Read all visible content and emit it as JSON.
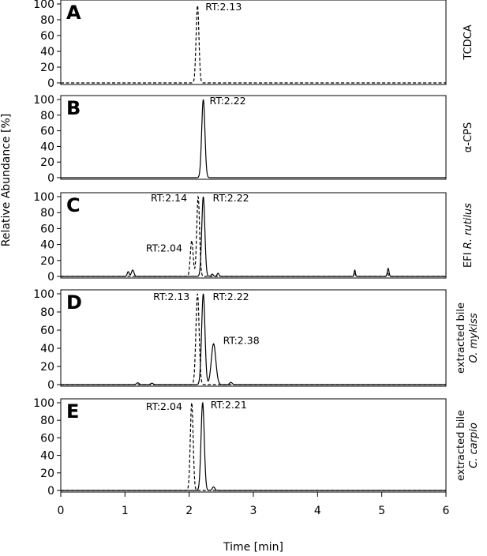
{
  "figure": {
    "ylabel": "Relative Abundance [%]",
    "xlabel": "Time [min]"
  },
  "chart_data": [
    {
      "type": "line",
      "panel": "A",
      "side_label": {
        "lines": [
          [
            {
              "text": "TCDCA",
              "italic": false
            }
          ]
        ]
      },
      "xlim": [
        0,
        6
      ],
      "ylim": [
        0,
        100
      ],
      "x_ticks": [
        0,
        1,
        2,
        3,
        4,
        5,
        6
      ],
      "y_ticks": [
        0,
        20,
        40,
        60,
        80,
        100
      ],
      "series": [
        {
          "dash": true,
          "baseline": 0,
          "peaks": [
            {
              "center": 2.13,
              "height": 98,
              "width": 0.022
            }
          ]
        }
      ],
      "annotations": [
        {
          "text": "RT:2.13",
          "x": 2.13,
          "y": 98
        }
      ]
    },
    {
      "type": "line",
      "panel": "B",
      "side_label": {
        "lines": [
          [
            {
              "text": "α-CPS",
              "italic": false
            }
          ]
        ]
      },
      "xlim": [
        0,
        6
      ],
      "ylim": [
        0,
        100
      ],
      "x_ticks": [
        0,
        1,
        2,
        3,
        4,
        5,
        6
      ],
      "y_ticks": [
        0,
        20,
        40,
        60,
        80,
        100
      ],
      "series": [
        {
          "dash": false,
          "baseline": 0,
          "peaks": [
            {
              "center": 2.22,
              "height": 100,
              "width": 0.025
            }
          ]
        }
      ],
      "annotations": [
        {
          "text": "RT:2.22",
          "x": 2.22,
          "y": 100
        }
      ]
    },
    {
      "type": "line",
      "panel": "C",
      "side_label": {
        "lines": [
          [
            {
              "text": "EFI ",
              "italic": false
            },
            {
              "text": "R. rutilus",
              "italic": true
            }
          ]
        ]
      },
      "xlim": [
        0,
        6
      ],
      "ylim": [
        0,
        100
      ],
      "x_ticks": [
        0,
        1,
        2,
        3,
        4,
        5,
        6
      ],
      "y_ticks": [
        0,
        20,
        40,
        60,
        80,
        100
      ],
      "series": [
        {
          "dash": true,
          "baseline": 0,
          "peaks": [
            {
              "center": 2.04,
              "height": 45,
              "width": 0.022
            },
            {
              "center": 2.14,
              "height": 100,
              "width": 0.022
            },
            {
              "center": 4.58,
              "height": 5,
              "width": 0.01
            },
            {
              "center": 5.09,
              "height": 4,
              "width": 0.012
            }
          ]
        },
        {
          "dash": false,
          "baseline": 0,
          "peaks": [
            {
              "center": 1.05,
              "height": 6,
              "width": 0.015
            },
            {
              "center": 1.12,
              "height": 8,
              "width": 0.02
            },
            {
              "center": 2.22,
              "height": 100,
              "width": 0.024
            },
            {
              "center": 2.36,
              "height": 3,
              "width": 0.015
            },
            {
              "center": 2.45,
              "height": 4,
              "width": 0.015
            },
            {
              "center": 4.58,
              "height": 8,
              "width": 0.01
            },
            {
              "center": 5.1,
              "height": 10,
              "width": 0.013
            }
          ]
        }
      ],
      "annotations": [
        {
          "text": "RT:2.14",
          "x": 2.14,
          "y": 100
        },
        {
          "text": "RT:2.22",
          "x": 2.22,
          "y": 100
        },
        {
          "text": "RT:2.04",
          "x": 2.04,
          "y": 45
        }
      ]
    },
    {
      "type": "line",
      "panel": "D",
      "side_label": {
        "lines": [
          [
            {
              "text": "extracted bile",
              "italic": false
            }
          ],
          [
            {
              "text": "O. mykiss",
              "italic": true
            }
          ]
        ]
      },
      "xlim": [
        0,
        6
      ],
      "ylim": [
        0,
        100
      ],
      "x_ticks": [
        0,
        1,
        2,
        3,
        4,
        5,
        6
      ],
      "y_ticks": [
        0,
        20,
        40,
        60,
        80,
        100
      ],
      "series": [
        {
          "dash": true,
          "baseline": 0,
          "peaks": [
            {
              "center": 2.13,
              "height": 100,
              "width": 0.025
            }
          ]
        },
        {
          "dash": false,
          "baseline": 0,
          "peaks": [
            {
              "center": 1.2,
              "height": 2,
              "width": 0.02
            },
            {
              "center": 1.42,
              "height": 1.5,
              "width": 0.02
            },
            {
              "center": 2.22,
              "height": 100,
              "width": 0.026
            },
            {
              "center": 2.38,
              "height": 45,
              "width": 0.035
            },
            {
              "center": 2.65,
              "height": 2.5,
              "width": 0.02
            }
          ]
        }
      ],
      "annotations": [
        {
          "text": "RT:2.13",
          "x": 2.13,
          "y": 100
        },
        {
          "text": "RT:2.22",
          "x": 2.22,
          "y": 100
        },
        {
          "text": "RT:2.38",
          "x": 2.38,
          "y": 45
        }
      ]
    },
    {
      "type": "line",
      "panel": "E",
      "side_label": {
        "lines": [
          [
            {
              "text": "extracted bile",
              "italic": false
            }
          ],
          [
            {
              "text": "C. carpio",
              "italic": true
            }
          ]
        ]
      },
      "xlim": [
        0,
        6
      ],
      "ylim": [
        0,
        100
      ],
      "x_ticks": [
        0,
        1,
        2,
        3,
        4,
        5,
        6
      ],
      "y_ticks": [
        0,
        20,
        40,
        60,
        80,
        100
      ],
      "series": [
        {
          "dash": true,
          "baseline": 0,
          "peaks": [
            {
              "center": 2.04,
              "height": 100,
              "width": 0.022
            }
          ]
        },
        {
          "dash": false,
          "baseline": 0,
          "peaks": [
            {
              "center": 2.21,
              "height": 100,
              "width": 0.025
            },
            {
              "center": 2.38,
              "height": 4,
              "width": 0.02
            }
          ]
        }
      ],
      "annotations": [
        {
          "text": "RT:2.04",
          "x": 2.04,
          "y": 100
        },
        {
          "text": "RT:2.21",
          "x": 2.21,
          "y": 100
        }
      ]
    }
  ]
}
